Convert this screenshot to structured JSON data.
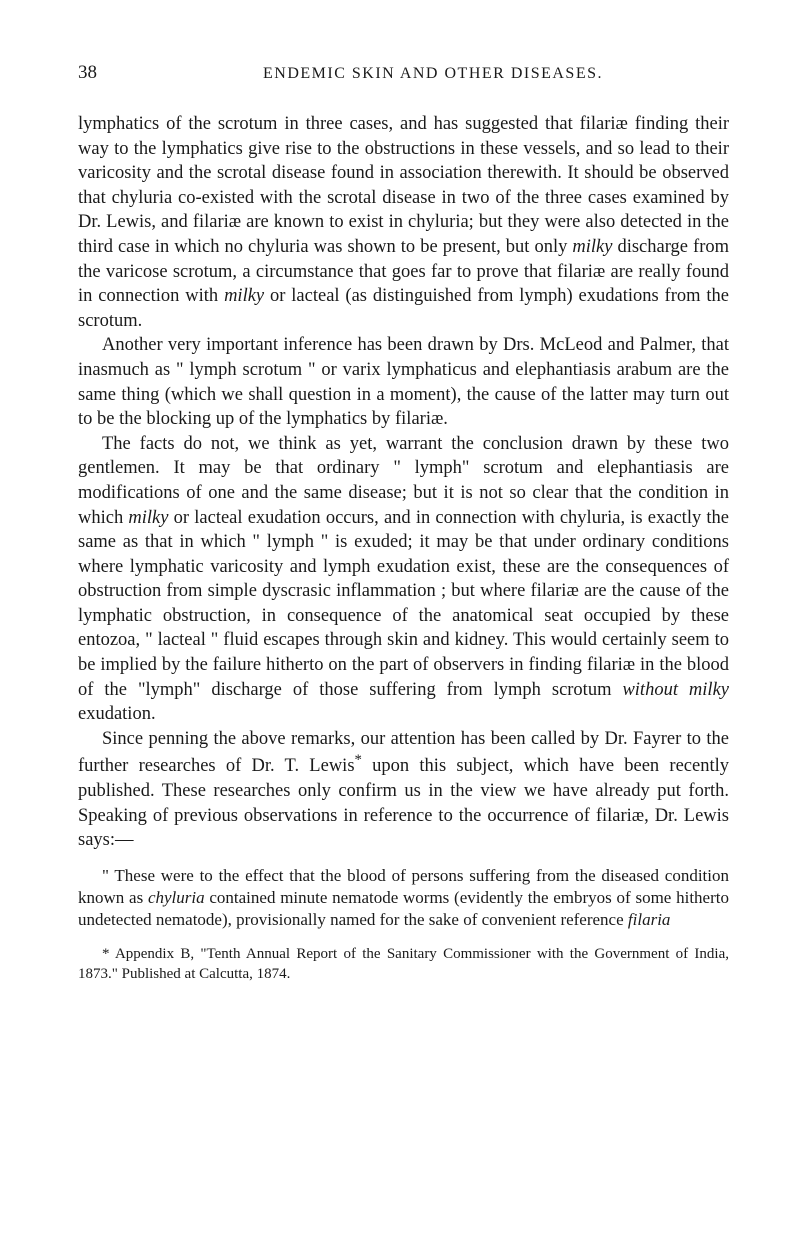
{
  "header": {
    "page_number": "38",
    "title": "ENDEMIC SKIN AND OTHER DISEASES."
  },
  "paragraphs": {
    "p1": "lymphatics of the scrotum in three cases, and has suggested that filariæ finding their way to the lymphatics give rise to the obstructions in these vessels, and so lead to their varicosity and the scrotal disease found in association therewith. It should be observed that chyluria co-existed with the scrotal disease in two of the three cases examined by Dr. Lewis, and filariæ are known to exist in chyluria; but they were also detected in the third case in which no chyluria was shown to be present, but only ",
    "p1_italic1": "milky",
    "p1_cont1": " discharge from the varicose scrotum, a circumstance that goes far to prove that filariæ are really found in connection with ",
    "p1_italic2": "milky",
    "p1_cont2": " or lacteal (as distinguished from lymph) exudations from the scrotum.",
    "p2": "Another very important inference has been drawn by Drs. McLeod and Palmer, that inasmuch as \" lymph scrotum \" or varix lymphaticus and elephantiasis arabum are the same thing (which we shall question in a moment), the cause of the latter may turn out to be the blocking up of the lymphatics by filariæ.",
    "p3": "The facts do not, we think as yet, warrant the conclusion drawn by these two gentlemen. It may be that ordinary \" lymph\" scrotum and elephantiasis are modifications of one and the same disease; but it is not so clear that the condition in which ",
    "p3_italic1": "milky",
    "p3_cont1": " or lacteal exudation occurs, and in connection with chyluria, is exactly the same as that in which \" lymph \" is exuded; it may be that under ordinary conditions where lymphatic varicosity and lymph exudation exist, these are the consequences of obstruction from simple dyscrasic inflammation ; but where filariæ are the cause of the lymphatic obstruction, in consequence of the anatomical seat occupied by these entozoa, \" lacteal \" fluid escapes through skin and kidney. This would certainly seem to be implied by the failure hitherto on the part of observers in finding filariæ in the blood of the \"lymph\" discharge of those suffering from lymph scrotum ",
    "p3_italic2": "without milky",
    "p3_cont2": " exudation.",
    "p4_a": "Since penning the above remarks, our attention has been called by Dr. Fayrer to the further researches of Dr. T. Lewis",
    "p4_asterisk": "*",
    "p4_b": " upon this subject, which have been recently published. These researches only confirm us in the view we have already put forth. Speaking of previous observations in reference to the occurrence of filariæ, Dr. Lewis says:—",
    "quote": "\" These were to the effect that the blood of persons suffering from the diseased condition known as ",
    "quote_italic1": "chyluria",
    "quote_cont1": " contained minute nematode worms (evidently the embryos of some hitherto undetected nematode), provisionally named for the sake of convenient reference ",
    "quote_italic2": "filaria",
    "footnote_marker": "*",
    "footnote_text": " Appendix B, \"Tenth Annual Report of the Sanitary Commissioner with the Government of India, 1873.\" Published at Calcutta, 1874."
  },
  "colors": {
    "background": "#ffffff",
    "text": "#1a1a1a"
  }
}
